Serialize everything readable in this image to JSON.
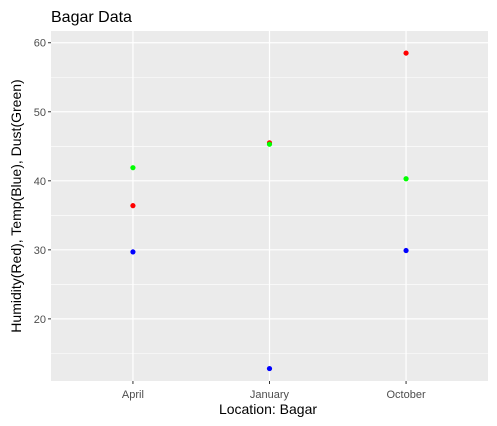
{
  "chart_data": {
    "type": "scatter",
    "title": "Bagar Data",
    "xlabel": "Location: Bagar",
    "ylabel": "Humidity(Red),  Temp(Blue),  Dust(Green)",
    "categories": [
      "April",
      "January",
      "October"
    ],
    "ylim": [
      11,
      61.7
    ],
    "yticks": [
      20,
      30,
      40,
      50,
      60
    ],
    "grid": true,
    "legend": "none",
    "series": [
      {
        "color": "#ff0000",
        "values": [
          36.4,
          45.5,
          58.5
        ]
      },
      {
        "color": "#0000ff",
        "values": [
          29.7,
          12.8,
          29.9
        ]
      },
      {
        "color": "#00ff00",
        "values": [
          41.9,
          45.3,
          40.3
        ]
      }
    ]
  },
  "colors": {
    "panel_bg": "#ebebeb",
    "grid": "#ffffff"
  }
}
